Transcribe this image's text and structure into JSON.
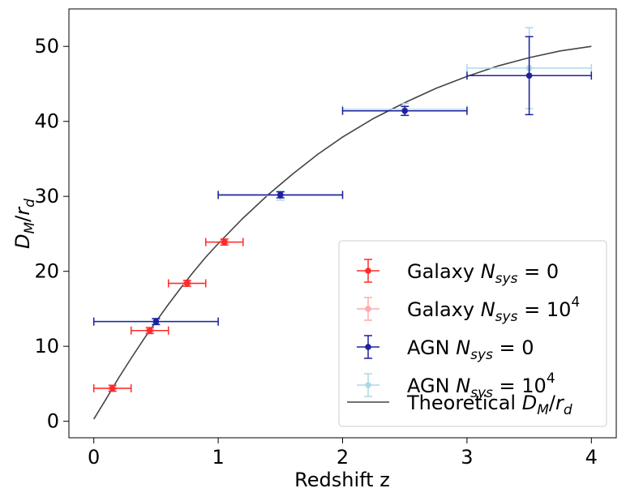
{
  "chart_data": {
    "type": "scatter",
    "title": "",
    "xlabel": "Redshift z",
    "ylabel_main": "D",
    "ylabel_sub1": "M",
    "ylabel_sub2": "d",
    "xlim": [
      -0.2,
      4.2
    ],
    "ylim": [
      -2.2,
      55
    ],
    "xticks": [
      0,
      1,
      2,
      3,
      4
    ],
    "yticks": [
      0,
      10,
      20,
      30,
      40,
      50
    ],
    "series": [
      {
        "name": "Galaxy N_sys = 0",
        "color": "#ff2a2a",
        "points": [
          {
            "x": 0.15,
            "y": 4.4,
            "xerr": 0.15,
            "yerr": 0.4
          },
          {
            "x": 0.45,
            "y": 12.1,
            "xerr": 0.15,
            "yerr": 0.4
          },
          {
            "x": 0.75,
            "y": 18.4,
            "xerr": 0.15,
            "yerr": 0.4
          },
          {
            "x": 1.05,
            "y": 23.9,
            "xerr": 0.15,
            "yerr": 0.4
          }
        ]
      },
      {
        "name": "Galaxy N_sys = 10^4",
        "color": "#ffaaaa",
        "points": [
          {
            "x": 0.15,
            "y": 4.4,
            "xerr": 0.15,
            "yerr": 0.2
          },
          {
            "x": 0.45,
            "y": 12.1,
            "xerr": 0.15,
            "yerr": 0.2
          },
          {
            "x": 0.75,
            "y": 18.4,
            "xerr": 0.15,
            "yerr": 0.2
          },
          {
            "x": 1.05,
            "y": 23.9,
            "xerr": 0.15,
            "yerr": 0.2
          }
        ]
      },
      {
        "name": "AGN N_sys = 0",
        "color": "#1f1f9f",
        "points": [
          {
            "x": 0.5,
            "y": 13.3,
            "xerr": 0.5,
            "yerr": 0.4
          },
          {
            "x": 1.5,
            "y": 30.2,
            "xerr": 0.5,
            "yerr": 0.4
          },
          {
            "x": 2.5,
            "y": 41.4,
            "xerr": 0.5,
            "yerr": 0.6
          },
          {
            "x": 3.5,
            "y": 46.1,
            "xerr": 0.5,
            "yerr": 5.2
          }
        ]
      },
      {
        "name": "AGN N_sys = 10^4",
        "color": "#add8e6",
        "points": [
          {
            "x": 0.5,
            "y": 13.3,
            "xerr": 0.5,
            "yerr": 0.3
          },
          {
            "x": 1.5,
            "y": 30.1,
            "xerr": 0.5,
            "yerr": 0.6
          },
          {
            "x": 2.5,
            "y": 41.6,
            "xerr": 0.5,
            "yerr": 0.8
          },
          {
            "x": 3.5,
            "y": 47.1,
            "xerr": 0.5,
            "yerr": 5.4
          }
        ]
      },
      {
        "name": "Theoretical D_M/r_d",
        "color": "#444444",
        "curve": {
          "x": [
            0.0,
            0.1,
            0.2,
            0.3,
            0.4,
            0.5,
            0.6,
            0.7,
            0.8,
            0.9,
            1.0,
            1.2,
            1.4,
            1.6,
            1.8,
            2.0,
            2.25,
            2.5,
            2.75,
            3.0,
            3.25,
            3.5,
            3.75,
            4.0
          ],
          "y": [
            0.3,
            3.0,
            5.8,
            8.4,
            10.9,
            13.3,
            15.6,
            17.8,
            19.9,
            21.9,
            23.7,
            27.1,
            30.2,
            33.0,
            35.6,
            37.9,
            40.4,
            42.5,
            44.4,
            46.0,
            47.4,
            48.5,
            49.4,
            50.0
          ]
        }
      }
    ],
    "legend": {
      "position": "lower-right",
      "entries": [
        {
          "prefix": "Galaxy ",
          "var": "N",
          "sub": "sys",
          "suffix": " = 0",
          "sup": ""
        },
        {
          "prefix": "Galaxy ",
          "var": "N",
          "sub": "sys",
          "suffix": " = 10",
          "sup": "4"
        },
        {
          "prefix": "AGN ",
          "var": "N",
          "sub": "sys",
          "suffix": " = 0",
          "sup": ""
        },
        {
          "prefix": "AGN ",
          "var": "N",
          "sub": "sys",
          "suffix": " = 10",
          "sup": "4"
        },
        {
          "prefix": "Theoretical ",
          "var": "D",
          "sub": "M",
          "suffix": "/",
          "sup": "",
          "var2": "r",
          "sub2": "d"
        }
      ]
    }
  }
}
